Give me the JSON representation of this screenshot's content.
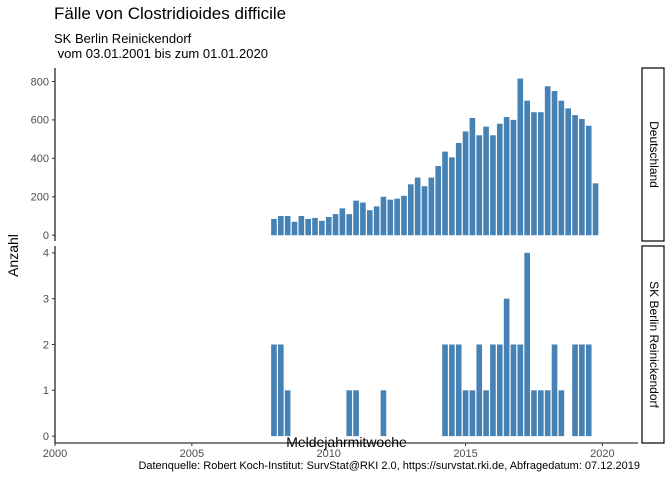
{
  "chart_data": {
    "type": "bar",
    "title": "Fälle von Clostridioides difficile",
    "subtitle_line1": "SK Berlin Reinickendorf",
    "subtitle_line2": " vom 03.01.2001 bis zum 01.01.2020",
    "xlabel": "Meldejahrmitwoche",
    "ylabel": "Anzahl",
    "caption": "Datenquelle: Robert Koch-Institut: SurvStat@RKI 2.0, https://survstat.rki.de, Abfragedatum: 07.12.2019",
    "xlim": [
      2000,
      2021.3
    ],
    "x_ticks": [
      2000,
      2005,
      2010,
      2015,
      2020
    ],
    "bar_color": "#4682B4",
    "grid": false,
    "facets": [
      {
        "name": "Deutschland",
        "ylim": [
          -30,
          870
        ],
        "y_ticks": [
          0,
          200,
          400,
          600,
          800
        ],
        "x": [
          2008.0,
          2008.25,
          2008.5,
          2008.75,
          2009.0,
          2009.25,
          2009.5,
          2009.75,
          2010.0,
          2010.25,
          2010.5,
          2010.75,
          2011.0,
          2011.25,
          2011.5,
          2011.75,
          2012.0,
          2012.25,
          2012.5,
          2012.75,
          2013.0,
          2013.25,
          2013.5,
          2013.75,
          2014.0,
          2014.25,
          2014.5,
          2014.75,
          2015.0,
          2015.25,
          2015.5,
          2015.75,
          2016.0,
          2016.25,
          2016.5,
          2016.75,
          2017.0,
          2017.25,
          2017.5,
          2017.75,
          2018.0,
          2018.25,
          2018.5,
          2018.75,
          2019.0,
          2019.25,
          2019.5,
          2019.75
        ],
        "values": [
          85,
          100,
          100,
          70,
          100,
          85,
          90,
          75,
          95,
          110,
          140,
          110,
          180,
          170,
          130,
          150,
          200,
          185,
          190,
          205,
          265,
          300,
          255,
          300,
          360,
          435,
          405,
          480,
          540,
          610,
          520,
          565,
          520,
          580,
          615,
          600,
          815,
          700,
          640,
          640,
          775,
          750,
          700,
          660,
          625,
          605,
          570,
          270
        ]
      },
      {
        "name": "SK Berlin Reinickendorf",
        "ylim": [
          -0.15,
          4.15
        ],
        "y_ticks": [
          0,
          1,
          2,
          3,
          4
        ],
        "x": [
          2008.0,
          2008.25,
          2008.5,
          2010.75,
          2011.0,
          2012.0,
          2014.25,
          2014.5,
          2014.75,
          2015.0,
          2015.25,
          2015.5,
          2015.75,
          2016.0,
          2016.25,
          2016.5,
          2016.75,
          2017.0,
          2017.25,
          2017.5,
          2017.75,
          2018.0,
          2018.25,
          2018.5,
          2018.75,
          2019.0,
          2019.25,
          2019.5
        ],
        "values": [
          2,
          2,
          1,
          1,
          1,
          1,
          2,
          2,
          2,
          1,
          1,
          2,
          1,
          2,
          2,
          3,
          2,
          2,
          4,
          1,
          1,
          1,
          2,
          1,
          0,
          2,
          2,
          2
        ]
      }
    ]
  }
}
